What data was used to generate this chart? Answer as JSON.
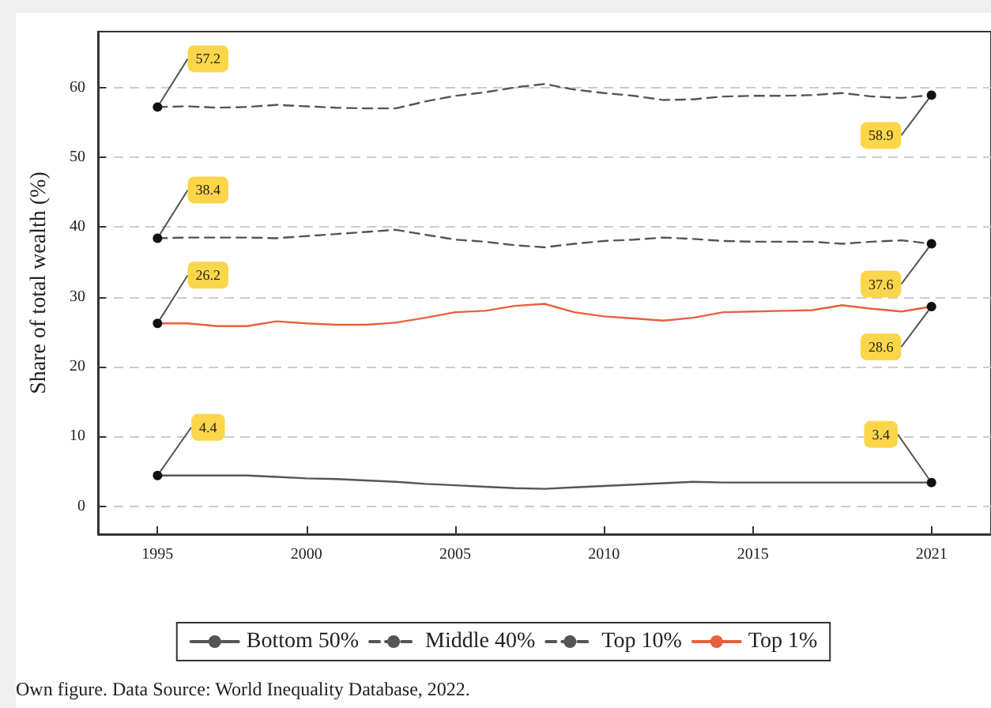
{
  "chart_data": {
    "type": "line",
    "ylabel": "Share of total wealth (%)",
    "x": [
      1995,
      1996,
      1997,
      1998,
      1999,
      2000,
      2001,
      2002,
      2003,
      2004,
      2005,
      2006,
      2007,
      2008,
      2009,
      2010,
      2011,
      2012,
      2013,
      2014,
      2015,
      2016,
      2017,
      2018,
      2019,
      2020,
      2021
    ],
    "xlim": [
      1993,
      2023
    ],
    "xticks": [
      1995,
      2000,
      2005,
      2010,
      2015,
      2021
    ],
    "ylim": [
      -4,
      68
    ],
    "yticks": [
      0,
      10,
      20,
      30,
      40,
      50,
      60
    ],
    "grid": "y",
    "legend": "bottom",
    "series": [
      {
        "name": "Bottom 50%",
        "color": "#555555",
        "line_style": "solid",
        "values": [
          4.4,
          4.4,
          4.4,
          4.4,
          4.2,
          4.0,
          3.9,
          3.7,
          3.5,
          3.2,
          3.0,
          2.8,
          2.6,
          2.5,
          2.7,
          2.9,
          3.1,
          3.3,
          3.5,
          3.4,
          3.4,
          3.4,
          3.4,
          3.4,
          3.4,
          3.4,
          3.4
        ],
        "value_labels": [
          "4.4",
          null,
          null,
          null,
          null,
          null,
          null,
          null,
          null,
          null,
          null,
          null,
          null,
          null,
          null,
          null,
          null,
          null,
          null,
          null,
          null,
          null,
          null,
          null,
          null,
          null,
          "3.4"
        ]
      },
      {
        "name": "Middle 40%",
        "color": "#555555",
        "line_style": "dashed",
        "values": [
          38.4,
          38.5,
          38.5,
          38.5,
          38.4,
          38.7,
          39.0,
          39.3,
          39.6,
          38.9,
          38.2,
          37.9,
          37.4,
          37.1,
          37.6,
          38.0,
          38.2,
          38.5,
          38.3,
          38.0,
          37.9,
          37.9,
          37.9,
          37.6,
          37.9,
          38.1,
          37.6
        ],
        "value_labels": [
          "38.4",
          null,
          null,
          null,
          null,
          null,
          null,
          null,
          null,
          null,
          null,
          null,
          null,
          null,
          null,
          null,
          null,
          null,
          null,
          null,
          null,
          null,
          null,
          null,
          null,
          null,
          "37.6"
        ]
      },
      {
        "name": "Top 10%",
        "color": "#555555",
        "line_style": "dashed",
        "values": [
          57.2,
          57.3,
          57.1,
          57.2,
          57.5,
          57.3,
          57.1,
          57.0,
          57.0,
          58.0,
          58.8,
          59.3,
          60.0,
          60.5,
          59.7,
          59.2,
          58.8,
          58.2,
          58.3,
          58.7,
          58.8,
          58.8,
          58.9,
          59.2,
          58.7,
          58.5,
          58.9
        ],
        "value_labels": [
          "57.2",
          null,
          null,
          null,
          null,
          null,
          null,
          null,
          null,
          null,
          null,
          null,
          null,
          null,
          null,
          null,
          null,
          null,
          null,
          null,
          null,
          null,
          null,
          null,
          null,
          null,
          "58.9"
        ]
      },
      {
        "name": "Top 1%",
        "color": "#e8603c",
        "line_style": "solid",
        "values": [
          26.2,
          26.2,
          25.8,
          25.8,
          26.5,
          26.2,
          26.0,
          26.0,
          26.3,
          27.0,
          27.8,
          28.0,
          28.7,
          29.0,
          27.8,
          27.2,
          26.9,
          26.6,
          27.0,
          27.8,
          27.9,
          28.0,
          28.1,
          28.8,
          28.3,
          27.9,
          28.6
        ],
        "value_labels": [
          "26.2",
          null,
          null,
          null,
          null,
          null,
          null,
          null,
          null,
          null,
          null,
          null,
          null,
          null,
          null,
          null,
          null,
          null,
          null,
          null,
          null,
          null,
          null,
          null,
          null,
          null,
          "28.6"
        ]
      }
    ],
    "annotations": [
      "Own figure. Data Source: World Inequality Database, 2022."
    ]
  }
}
